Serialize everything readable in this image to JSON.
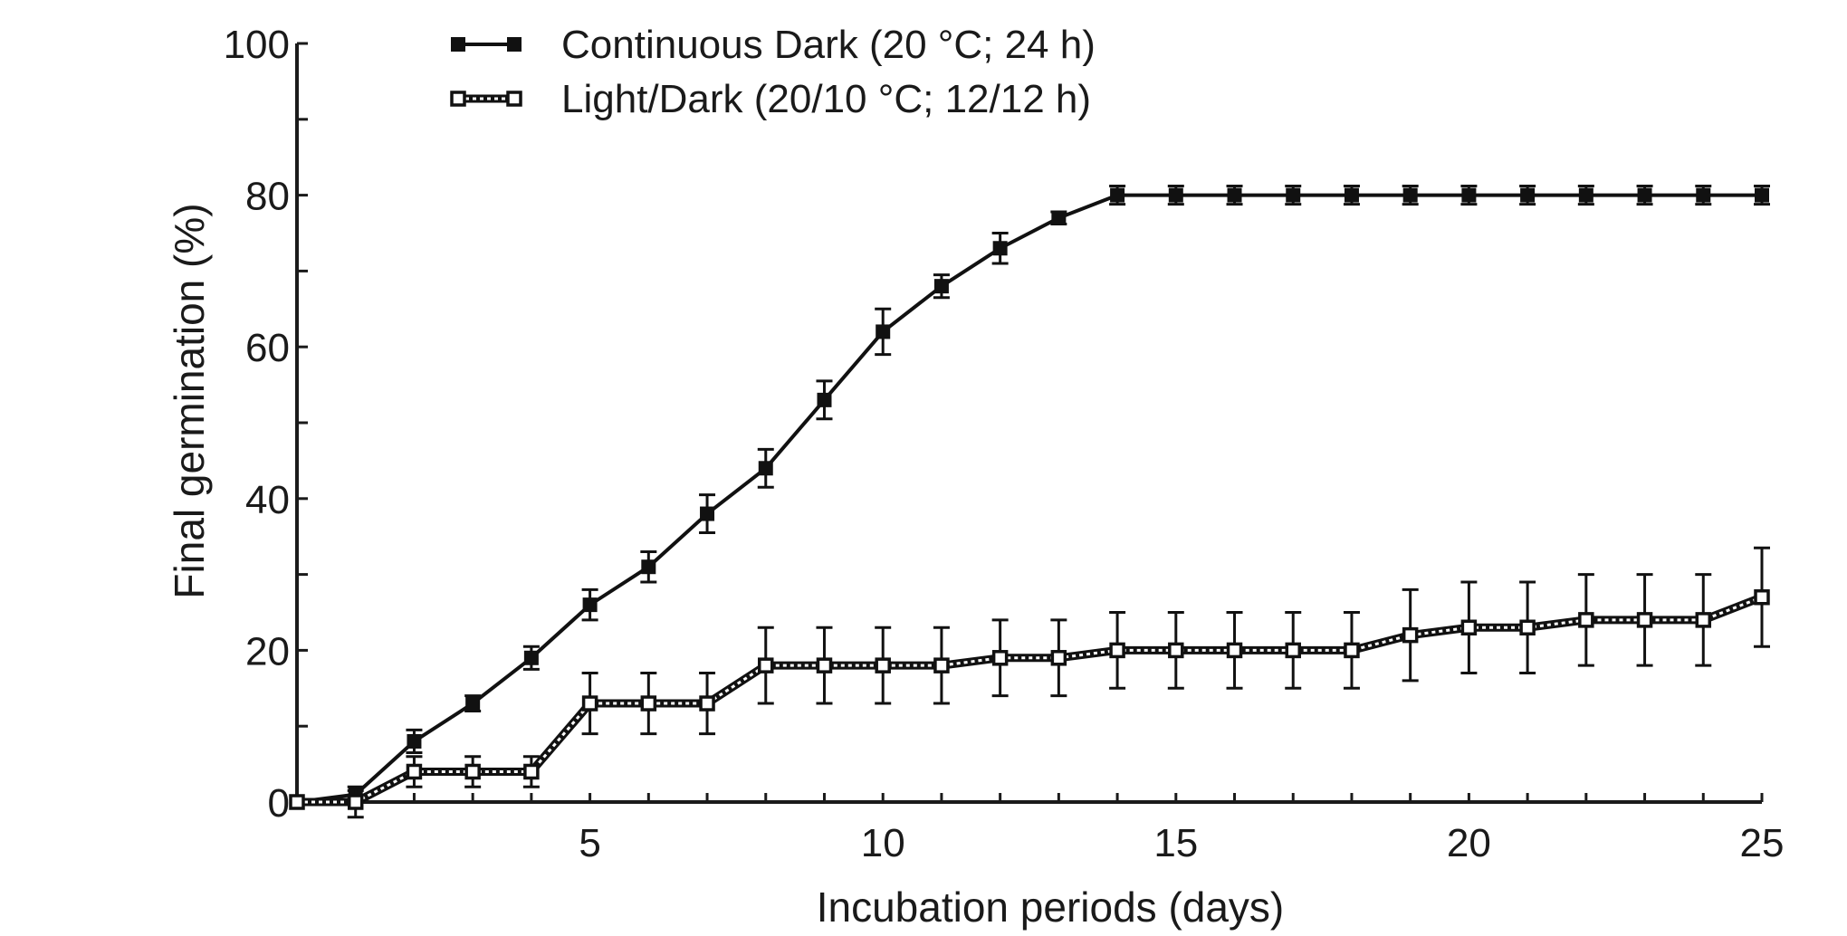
{
  "chart_data": {
    "type": "line",
    "xlabel": "Incubation periods (days)",
    "ylabel": "Final germination (%)",
    "xlim": [
      0,
      25
    ],
    "ylim": [
      0,
      100
    ],
    "x_ticks": [
      5,
      10,
      15,
      20,
      25
    ],
    "y_ticks": [
      0,
      20,
      40,
      60,
      80,
      100
    ],
    "legend_position": "top-left",
    "grid": false,
    "series": [
      {
        "name": "Continuous Dark (20 °C; 24 h)",
        "marker": "filled-square",
        "line": "solid",
        "color": "#111111",
        "x": [
          0,
          1,
          2,
          3,
          4,
          5,
          6,
          7,
          8,
          9,
          10,
          11,
          12,
          13,
          14,
          15,
          16,
          17,
          18,
          19,
          20,
          21,
          22,
          23,
          24,
          25
        ],
        "y": [
          0,
          1,
          8,
          13,
          19,
          26,
          31,
          38,
          44,
          53,
          62,
          68,
          73,
          77,
          80,
          80,
          80,
          80,
          80,
          80,
          80,
          80,
          80,
          80,
          80,
          80
        ],
        "error": [
          0,
          0.5,
          1.5,
          1.0,
          1.5,
          2.0,
          2.0,
          2.5,
          2.5,
          2.5,
          3.0,
          1.5,
          2.0,
          0.8,
          1.2,
          1.2,
          1.2,
          1.2,
          1.2,
          1.2,
          1.2,
          1.2,
          1.2,
          1.2,
          1.2,
          1.2
        ]
      },
      {
        "name": "Light/Dark (20/10 °C; 12/12 h)",
        "marker": "open-square",
        "line": "dotted",
        "color": "#111111",
        "x": [
          0,
          1,
          2,
          3,
          4,
          5,
          6,
          7,
          8,
          9,
          10,
          11,
          12,
          13,
          14,
          15,
          16,
          17,
          18,
          19,
          20,
          21,
          22,
          23,
          24,
          25
        ],
        "y": [
          0,
          0,
          4,
          4,
          4,
          13,
          13,
          13,
          18,
          18,
          18,
          18,
          19,
          19,
          20,
          20,
          20,
          20,
          20,
          22,
          23,
          23,
          24,
          24,
          24,
          27
        ],
        "error": [
          0,
          2.0,
          2.0,
          2.0,
          2.0,
          4.0,
          4.0,
          4.0,
          5.0,
          5.0,
          5.0,
          5.0,
          5.0,
          5.0,
          5.0,
          5.0,
          5.0,
          5.0,
          5.0,
          6.0,
          6.0,
          6.0,
          6.0,
          6.0,
          6.0,
          6.5
        ]
      }
    ]
  }
}
